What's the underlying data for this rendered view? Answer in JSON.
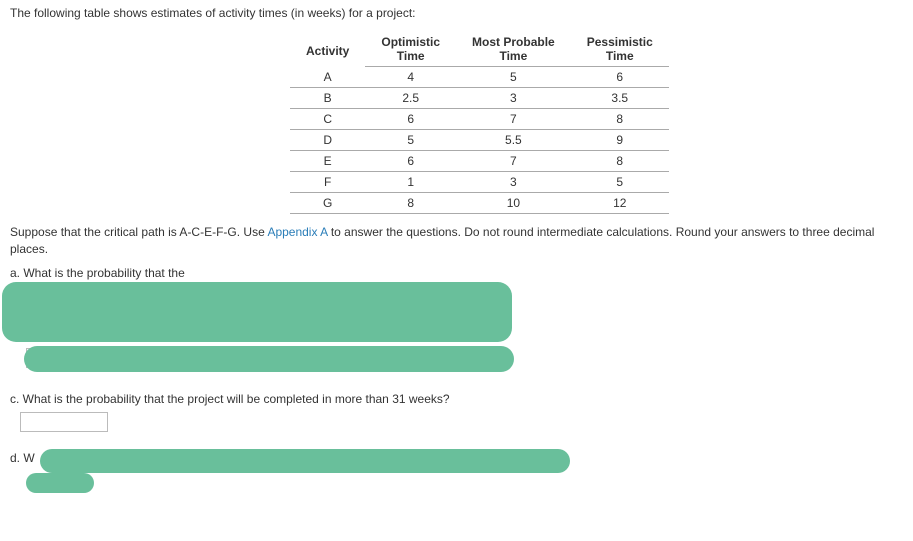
{
  "intro": "The following table shows estimates of activity times (in weeks) for a project:",
  "table": {
    "headers": {
      "activity": "Activity",
      "opt_top": "Optimistic",
      "opt_bot": "Time",
      "mp_top": "Most Probable",
      "mp_bot": "Time",
      "pes_top": "Pessimistic",
      "pes_bot": "Time"
    },
    "rows": [
      {
        "a": "A",
        "o": "4",
        "m": "5",
        "p": "6"
      },
      {
        "a": "B",
        "o": "2.5",
        "m": "3",
        "p": "3.5"
      },
      {
        "a": "C",
        "o": "6",
        "m": "7",
        "p": "8"
      },
      {
        "a": "D",
        "o": "5",
        "m": "5.5",
        "p": "9"
      },
      {
        "a": "E",
        "o": "6",
        "m": "7",
        "p": "8"
      },
      {
        "a": "F",
        "o": "1",
        "m": "3",
        "p": "5"
      },
      {
        "a": "G",
        "o": "8",
        "m": "10",
        "p": "12"
      }
    ]
  },
  "instruction_pre": "Suppose that the critical path is A-C-E-F-G. Use ",
  "instruction_link": "Appendix A",
  "instruction_post": " to answer the questions. Do not round intermediate calculations. Round your answers to three decimal places.",
  "obscured_a": "a. What is the probability that the",
  "question_c": "c. What is the probability that the project will be completed in more than 31 weeks?",
  "label_d": "d. W",
  "colors": {
    "green": "#69bf9b",
    "link": "#2a7db8"
  }
}
